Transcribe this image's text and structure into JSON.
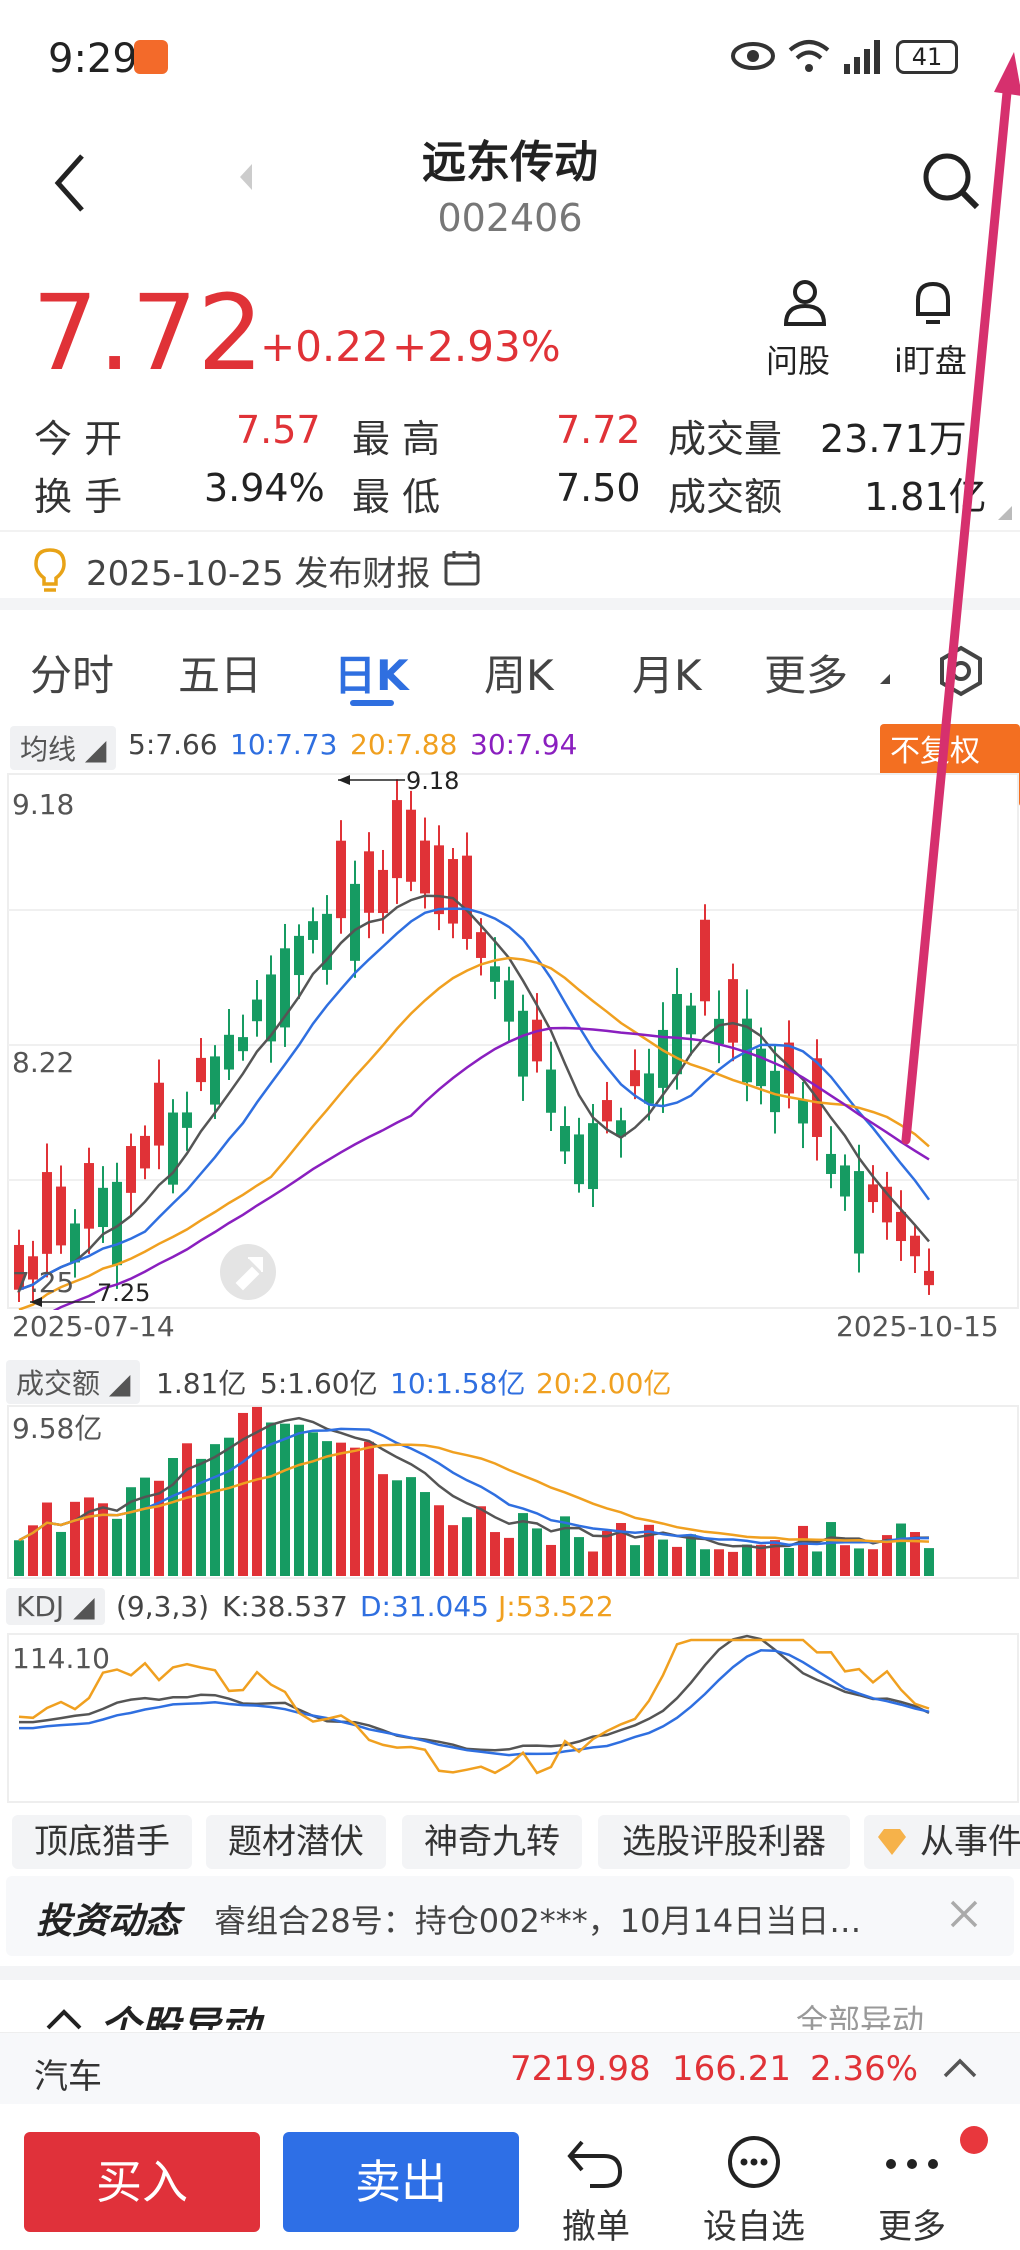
{
  "status_bar": {
    "time": "9:29",
    "battery": "41"
  },
  "header": {
    "title": "远东传动",
    "code": "002406",
    "ask_label": "问股",
    "watch_label": "i盯盘"
  },
  "quote": {
    "price": "7.72",
    "change": "+0.22",
    "change_pct": "+2.93%",
    "open_label": "今 开",
    "open": "7.57",
    "high_label": "最 高",
    "high": "7.72",
    "volume_label": "成交量",
    "volume": "23.71万",
    "turnover_label": "换 手",
    "turnover": "3.94%",
    "low_label": "最 低",
    "low": "7.50",
    "amount_label": "成交额",
    "amount": "1.81亿"
  },
  "report": {
    "text": "2025-10-25 发布财报"
  },
  "tabs": [
    "分时",
    "五日",
    "日K",
    "周K",
    "月K",
    "更多"
  ],
  "active_tab": 2,
  "ma_legend": {
    "label": "均线",
    "ma5": "5:7.66",
    "ma10": "10:7.73",
    "ma20": "20:7.88",
    "ma30": "30:7.94",
    "adjust": "不复权"
  },
  "kline": {
    "y_high": "9.18",
    "y_mid": "8.22",
    "y_low": "7.25",
    "max_label": "9.18",
    "min_label": "7.25",
    "date_start": "2025-07-14",
    "date_end": "2025-10-15"
  },
  "amount_legend": {
    "label": "成交额",
    "value": "1.81亿",
    "ma5": "5:1.60亿",
    "ma10": "10:1.58亿",
    "ma20": "20:2.00亿",
    "max": "9.58亿"
  },
  "kdj_legend": {
    "label": "KDJ",
    "params": "(9,3,3)",
    "k": "K:38.537",
    "d": "D:31.045",
    "j": "J:53.522",
    "max": "114.10"
  },
  "features": [
    "顶底猎手",
    "题材潜伏",
    "神奇九转",
    "选股评股利器",
    "从事件"
  ],
  "news": {
    "title": "投资动态",
    "text": "睿组合28号：持仓002***，10月14日当日…"
  },
  "movement": {
    "title": "个股异动",
    "link": "全部异动"
  },
  "sector": {
    "name": "汽车",
    "value": "7219.98",
    "change": "166.21",
    "pct": "2.36%"
  },
  "bottom": {
    "buy": "买入",
    "sell": "卖出",
    "cancel": "撤单",
    "watchlist": "设自选",
    "more": "更多"
  },
  "colors": {
    "up": "#e03237",
    "down": "#169b62",
    "ma10": "#2f6fe0",
    "ma20": "#f0a020",
    "ma30": "#8a1fbf",
    "accent": "#2f6fe0",
    "annotation": "#d6306e"
  }
}
